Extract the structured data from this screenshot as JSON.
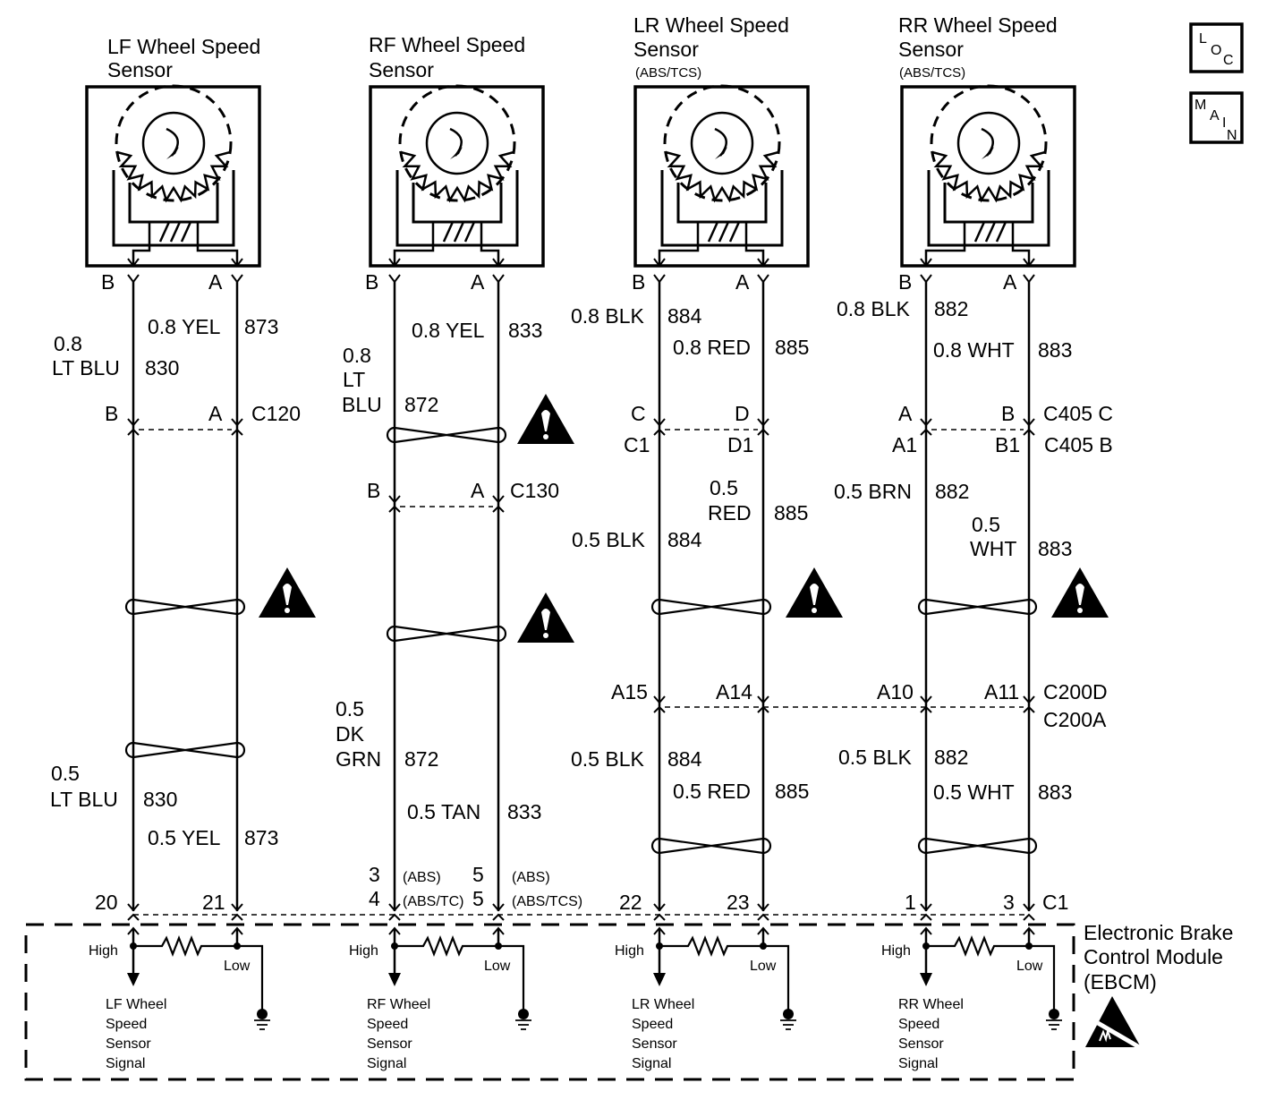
{
  "icons": {
    "warning": "warning-triangle-icon",
    "esd": "esd-sensitive-icon",
    "ground": "ground-icon",
    "loc": "loc-button-icon",
    "main": "main-button-icon"
  },
  "nav": {
    "loc": [
      "L",
      "O",
      "C"
    ],
    "main": [
      "M",
      "A",
      "I",
      "N"
    ]
  },
  "lf": {
    "title1": "LF Wheel Speed",
    "title2": "Sensor",
    "pin_b": "B",
    "pin_a": "A",
    "a_top_color": "0.8 YEL",
    "a_top_circuit": "873",
    "b_top_size": "0.8",
    "b_top_color": "LT BLU",
    "b_top_circuit": "830",
    "conn_b": "B",
    "conn_a": "A",
    "conn_name": "C120",
    "b_bot_size": "0.5",
    "b_bot_color": "LT BLU",
    "b_bot_circuit": "830",
    "a_bot_color": "0.5 YEL",
    "a_bot_circuit": "873",
    "ebcm_b": "20",
    "ebcm_a": "21",
    "high": "High",
    "low": "Low",
    "signal": [
      "LF Wheel",
      "Speed",
      "Sensor",
      "Signal"
    ]
  },
  "rf": {
    "title1": "RF Wheel Speed",
    "title2": "Sensor",
    "pin_b": "B",
    "pin_a": "A",
    "a_top_color": "0.8 YEL",
    "a_top_circuit": "833",
    "b_top_size": "0.8",
    "b_top_color1": "LT",
    "b_top_color2": "BLU",
    "b_top_circuit": "872",
    "conn_b": "B",
    "conn_a": "A",
    "conn_name": "C130",
    "b_bot_size": "0.5",
    "b_bot_color1": "DK",
    "b_bot_color2": "GRN",
    "b_bot_circuit": "872",
    "a_bot_color": "0.5 TAN",
    "a_bot_circuit": "833",
    "ebcm_b_abs": "3",
    "ebcm_b_abs_note": "(ABS)",
    "ebcm_a_abs": "5",
    "ebcm_a_abs_note": "(ABS)",
    "ebcm_b_tcs": "4",
    "ebcm_b_tcs_note": "(ABS/TC)",
    "ebcm_a_tcs": "5",
    "ebcm_a_tcs_note": "(ABS/TCS)",
    "high": "High",
    "low": "Low",
    "signal": [
      "RF Wheel",
      "Speed",
      "Sensor",
      "Signal"
    ]
  },
  "lr": {
    "title1": "LR Wheel Speed",
    "title2": "Sensor",
    "subtitle": "(ABS/TCS)",
    "pin_b": "B",
    "pin_a": "A",
    "b_top_color": "0.8 BLK",
    "b_top_circuit": "884",
    "a_top_color": "0.8 RED",
    "a_top_circuit": "885",
    "conn_b": "C",
    "conn_a": "D",
    "conn_b2": "C1",
    "conn_a2": "D1",
    "a_mid_size": "0.5",
    "a_mid_color": "RED",
    "a_mid_circuit": "885",
    "b_mid_color": "0.5 BLK",
    "b_mid_circuit": "884",
    "c200_b": "A15",
    "c200_a": "A14",
    "b_bot_color": "0.5 BLK",
    "b_bot_circuit": "884",
    "a_bot_color": "0.5 RED",
    "a_bot_circuit": "885",
    "ebcm_b": "22",
    "ebcm_a": "23",
    "high": "High",
    "low": "Low",
    "signal": [
      "LR Wheel",
      "Speed",
      "Sensor",
      "Signal"
    ]
  },
  "rr": {
    "title1": "RR Wheel Speed",
    "title2": "Sensor",
    "subtitle": "(ABS/TCS)",
    "pin_b": "B",
    "pin_a": "A",
    "b_top_color": "0.8 BLK",
    "b_top_circuit": "882",
    "a_top_color": "0.8 WHT",
    "a_top_circuit": "883",
    "conn_b": "A",
    "conn_a": "B",
    "conn_name": "C405 C",
    "conn_b2": "A1",
    "conn_a2": "B1",
    "conn_name2": "C405 B",
    "b_mid_color": "0.5 BRN",
    "b_mid_circuit": "882",
    "a_mid_size": "0.5",
    "a_mid_color": "WHT",
    "a_mid_circuit": "883",
    "c200_b": "A10",
    "c200_a": "A11",
    "c200_name1": "C200D",
    "c200_name2": "C200A",
    "b_bot_color": "0.5 BLK",
    "b_bot_circuit": "882",
    "a_bot_color": "0.5 WHT",
    "a_bot_circuit": "883",
    "ebcm_b": "1",
    "ebcm_a": "3",
    "ebcm_conn": "C1",
    "high": "High",
    "low": "Low",
    "signal": [
      "RR Wheel",
      "Speed",
      "Sensor",
      "Signal"
    ]
  },
  "ebcm": {
    "line1": "Electronic Brake",
    "line2": "Control Module",
    "line3": "(EBCM)"
  }
}
